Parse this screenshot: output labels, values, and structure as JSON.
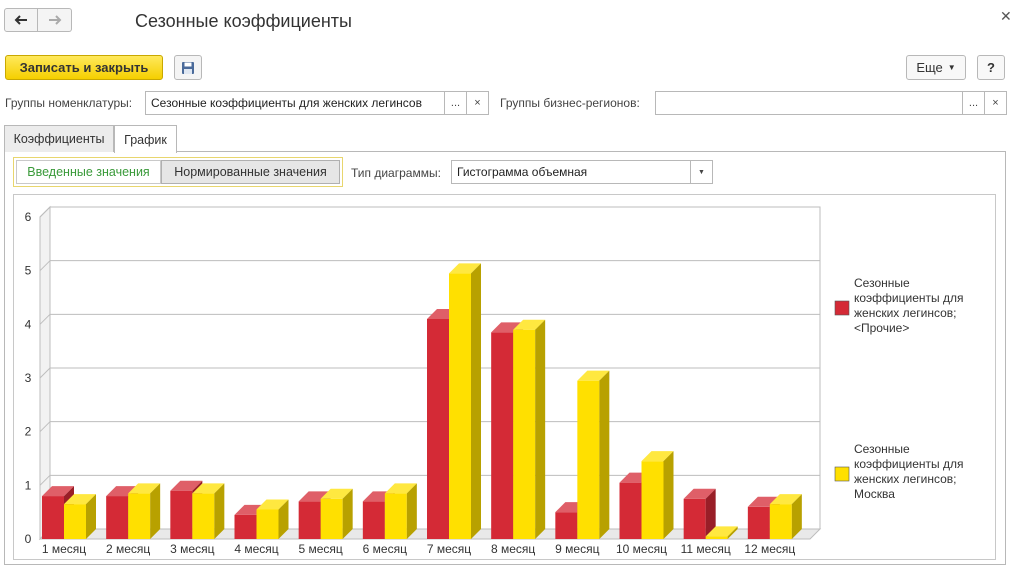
{
  "window": {
    "title": "Сезонные коэффициенты"
  },
  "toolbar": {
    "save_close_label": "Записать и закрыть",
    "more_label": "Еще",
    "help_label": "?"
  },
  "fields": {
    "nomenclature_groups": {
      "label": "Группы номенклатуры:",
      "value": "Сезонные коэффициенты для женских легинсов"
    },
    "business_regions": {
      "label": "Группы бизнес-регионов:",
      "value": ""
    },
    "choose_label": "...",
    "clear_label": "×"
  },
  "tabs": [
    {
      "label": "Коэффициенты"
    },
    {
      "label": "График"
    }
  ],
  "segments": {
    "entered": "Введенные значения",
    "normalized": "Нормированные значения"
  },
  "chart_type": {
    "label": "Тип диаграммы:",
    "value": "Гистограмма объемная"
  },
  "colors": {
    "series_red": "#d42a36",
    "series_yellow": "#ffe000",
    "accent_primary": "#f5cf00"
  },
  "icons": {
    "back": "arrow-left-icon",
    "forward": "arrow-right-icon",
    "save": "floppy-disk-icon",
    "close": "close-icon"
  },
  "chart_data": {
    "type": "bar",
    "style": "3d",
    "categories": [
      "1 месяц",
      "2 месяц",
      "3 месяц",
      "4 месяц",
      "5 месяц",
      "6 месяц",
      "7 месяц",
      "8 месяц",
      "9 месяц",
      "10 месяц",
      "11 месяц",
      "12 месяц"
    ],
    "series": [
      {
        "name": "Сезонные коэффициенты для женских легинсов; <Прочие>",
        "color": "#d42a36",
        "values": [
          0.8,
          0.8,
          0.9,
          0.45,
          0.7,
          0.7,
          4.1,
          3.85,
          0.5,
          1.05,
          0.75,
          0.6
        ]
      },
      {
        "name": "Сезонные коэффициенты для женских легинсов; Москва",
        "color": "#ffe000",
        "values": [
          0.65,
          0.85,
          0.85,
          0.55,
          0.75,
          0.85,
          4.95,
          3.9,
          2.95,
          1.45,
          0.05,
          0.65
        ]
      }
    ],
    "y_ticks": [
      "0",
      "1",
      "2",
      "3",
      "4",
      "5",
      "6"
    ],
    "ylim": [
      0,
      6
    ],
    "grid": true,
    "legend": "right"
  }
}
